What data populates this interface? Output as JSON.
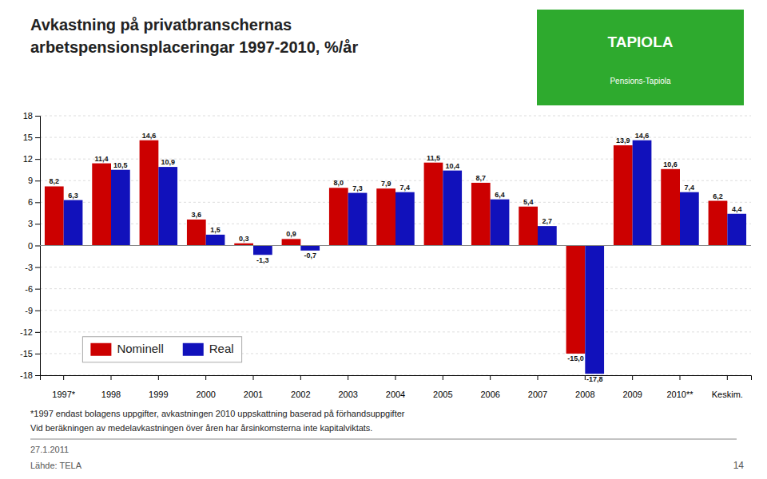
{
  "chart_data": {
    "type": "bar",
    "title": "Avkastning på privatbranschernas",
    "subtitle": "arbetspensionsplaceringar 1997-2010, %/år",
    "categories": [
      "1997*",
      "1998",
      "1999",
      "2000",
      "2001",
      "2002",
      "2003",
      "2004",
      "2005",
      "2006",
      "2007",
      "2008",
      "2009",
      "2010**",
      "Keskim."
    ],
    "series": [
      {
        "name": "Nominell",
        "color": "#CC0000",
        "values": [
          8.2,
          11.4,
          14.6,
          3.6,
          0.3,
          0.9,
          8.0,
          7.9,
          11.5,
          8.7,
          5.4,
          -15.0,
          13.9,
          10.6,
          6.2
        ],
        "value_labels": [
          "8,2",
          "11,4",
          "14,6",
          "3,6",
          "0,3",
          "0,9",
          "8,0",
          "7,9",
          "11,5",
          "8,7",
          "5,4",
          "-15,0",
          "13,9",
          "10,6",
          "6,2"
        ]
      },
      {
        "name": "Real",
        "color": "#1111BB",
        "values": [
          6.3,
          10.5,
          10.9,
          1.5,
          -1.3,
          -0.7,
          7.3,
          7.4,
          10.4,
          6.4,
          2.7,
          -17.8,
          14.6,
          7.4,
          4.4
        ],
        "value_labels": [
          "6,3",
          "10,5",
          "10,9",
          "1,5",
          "-1,3",
          "-0,7",
          "7,3",
          "7,4",
          "10,4",
          "6,4",
          "2,7",
          "-17,8",
          "14,6",
          "7,4",
          "4,4"
        ]
      }
    ],
    "ylim": [
      -18,
      18
    ],
    "yticks": [
      -18,
      -15,
      -12,
      -9,
      -6,
      -3,
      0,
      3,
      6,
      9,
      12,
      15,
      18
    ],
    "grid": true,
    "legend": "lower left",
    "data_labels": true,
    "annotations": [
      "TAPIOLA",
      "Pensions-Tapiola",
      "*1997 endast bolagens uppgifter, avkastningen 2010 uppskattning baserad på förhandsuppgifter",
      "Vid beräkningen av medelavkastningen över åren har årsinkomsterna inte kapitalviktats.",
      "27.1.2011",
      "Lähde: TELA",
      "14"
    ]
  }
}
